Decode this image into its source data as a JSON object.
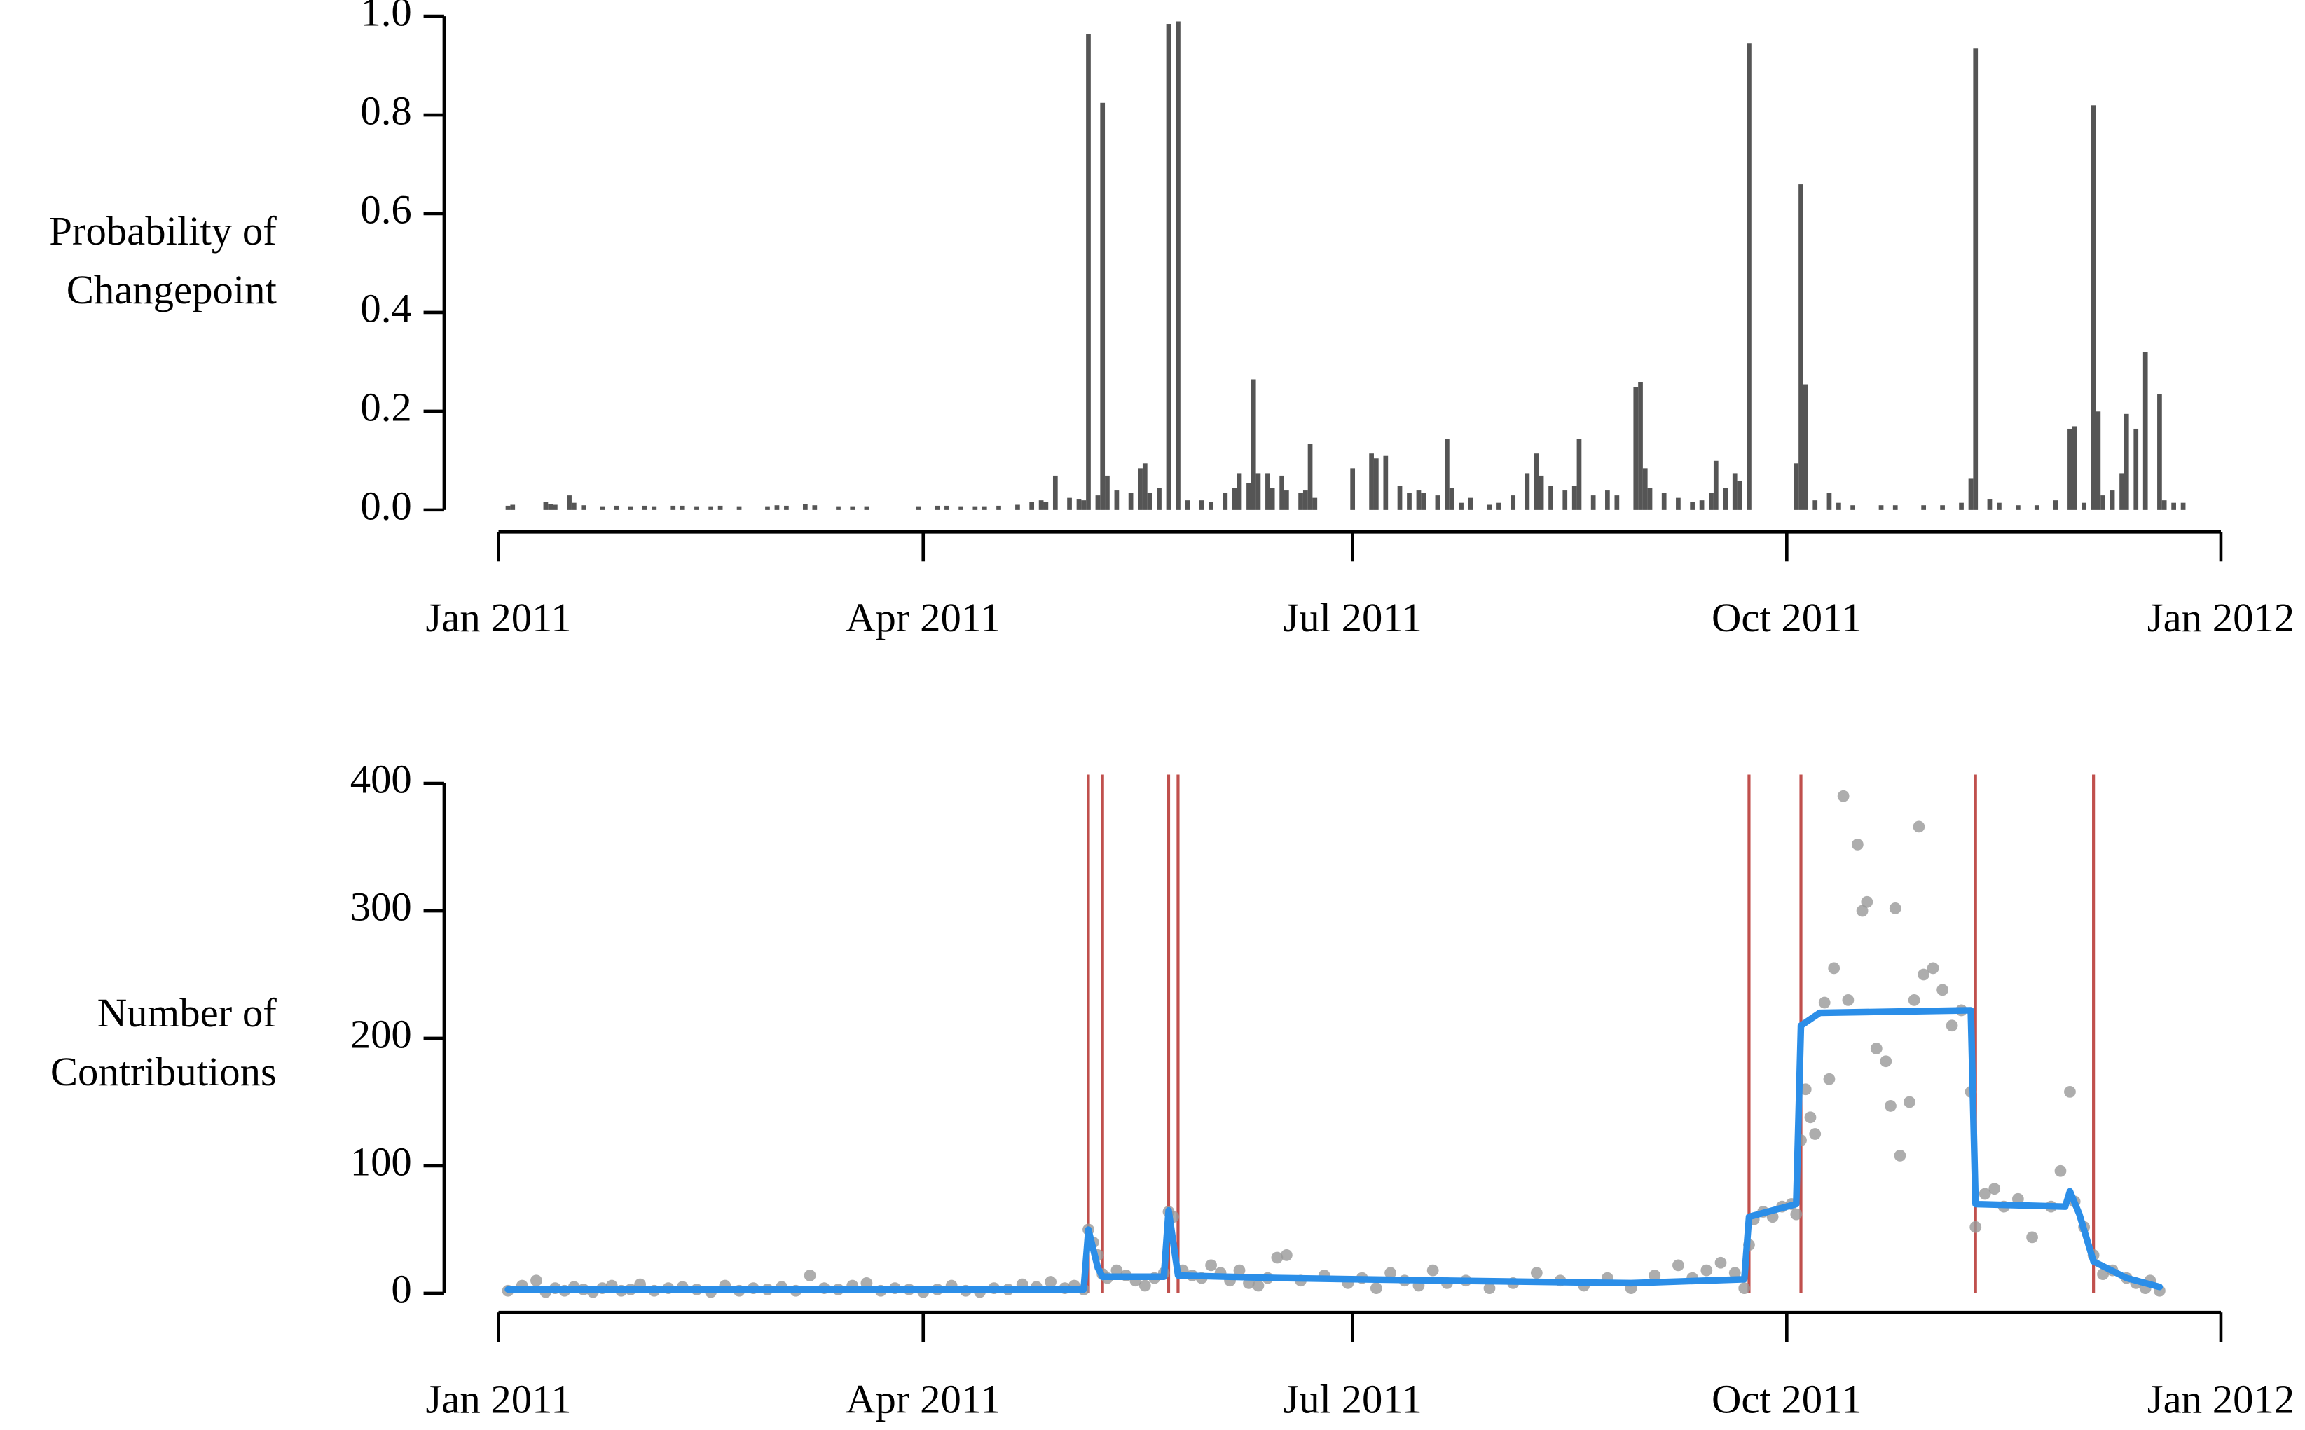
{
  "chart_data": [
    {
      "type": "bar",
      "ylabel": [
        "Probability of",
        "Changepoint"
      ],
      "color": "#555555",
      "xlim": [
        0,
        365
      ],
      "xticks": [
        {
          "value": 0,
          "label": "Jan 2011"
        },
        {
          "value": 90,
          "label": "Apr 2011"
        },
        {
          "value": 181,
          "label": "Jul 2011"
        },
        {
          "value": 273,
          "label": "Oct 2011"
        },
        {
          "value": 365,
          "label": "Jan 2012"
        }
      ],
      "ylim": [
        0,
        1
      ],
      "yticks": [
        {
          "value": 0,
          "label": "0.0"
        },
        {
          "value": 0.2,
          "label": "0.2"
        },
        {
          "value": 0.4,
          "label": "0.4"
        },
        {
          "value": 0.6,
          "label": "0.6"
        },
        {
          "value": 0.8,
          "label": "0.8"
        },
        {
          "value": 1,
          "label": "1.0"
        }
      ],
      "x": [
        2,
        3,
        10,
        11,
        12,
        15,
        16,
        18,
        22,
        25,
        28,
        31,
        33,
        37,
        39,
        42,
        45,
        47,
        51,
        57,
        59,
        61,
        65,
        67,
        72,
        75,
        78,
        89,
        93,
        95,
        98,
        101,
        103,
        106,
        110,
        113,
        115,
        116,
        118,
        121,
        123,
        124,
        125,
        127,
        128,
        129,
        131,
        134,
        136,
        137,
        138,
        140,
        142,
        144,
        146,
        149,
        151,
        154,
        156,
        157,
        159,
        160,
        161,
        163,
        164,
        166,
        167,
        170,
        171,
        172,
        173,
        181,
        185,
        186,
        188,
        191,
        193,
        195,
        196,
        199,
        201,
        202,
        204,
        206,
        210,
        212,
        215,
        218,
        220,
        221,
        223,
        226,
        228,
        229,
        232,
        235,
        237,
        241,
        242,
        243,
        244,
        247,
        250,
        253,
        255,
        257,
        258,
        260,
        262,
        263,
        265,
        275,
        276,
        277,
        279,
        282,
        284,
        287,
        293,
        296,
        302,
        306,
        310,
        312,
        313,
        316,
        318,
        322,
        326,
        330,
        333,
        334,
        336,
        338,
        339,
        340,
        342,
        344,
        345,
        347,
        349,
        352,
        353,
        355,
        357
      ],
      "values": [
        0.004,
        0.006,
        0.012,
        0.008,
        0.006,
        0.025,
        0.01,
        0.005,
        0.003,
        0.004,
        0.003,
        0.004,
        0.003,
        0.004,
        0.004,
        0.003,
        0.003,
        0.004,
        0.003,
        0.003,
        0.005,
        0.004,
        0.008,
        0.005,
        0.003,
        0.003,
        0.003,
        0.003,
        0.004,
        0.004,
        0.003,
        0.003,
        0.003,
        0.004,
        0.006,
        0.012,
        0.015,
        0.012,
        0.065,
        0.02,
        0.018,
        0.015,
        0.96,
        0.025,
        0.82,
        0.065,
        0.035,
        0.03,
        0.08,
        0.09,
        0.03,
        0.04,
        0.98,
        0.985,
        0.015,
        0.015,
        0.012,
        0.03,
        0.04,
        0.07,
        0.05,
        0.26,
        0.07,
        0.07,
        0.04,
        0.065,
        0.035,
        0.03,
        0.035,
        0.13,
        0.02,
        0.08,
        0.11,
        0.1,
        0.105,
        0.045,
        0.03,
        0.035,
        0.03,
        0.025,
        0.14,
        0.04,
        0.01,
        0.02,
        0.006,
        0.01,
        0.025,
        0.07,
        0.11,
        0.065,
        0.045,
        0.035,
        0.045,
        0.14,
        0.025,
        0.035,
        0.025,
        0.245,
        0.255,
        0.08,
        0.04,
        0.03,
        0.02,
        0.012,
        0.015,
        0.03,
        0.095,
        0.04,
        0.07,
        0.055,
        0.94,
        0.09,
        0.655,
        0.25,
        0.015,
        0.03,
        0.01,
        0.005,
        0.005,
        0.005,
        0.005,
        0.005,
        0.01,
        0.06,
        0.93,
        0.018,
        0.01,
        0.005,
        0.005,
        0.015,
        0.16,
        0.165,
        0.01,
        0.815,
        0.195,
        0.025,
        0.035,
        0.07,
        0.19,
        0.16,
        0.315,
        0.23,
        0.015,
        0.01,
        0.01
      ]
    },
    {
      "type": "scatter",
      "ylabel": [
        "Number of",
        "Contributions"
      ],
      "xlim": [
        0,
        365
      ],
      "xticks": [
        {
          "value": 0,
          "label": "Jan 2011"
        },
        {
          "value": 90,
          "label": "Apr 2011"
        },
        {
          "value": 181,
          "label": "Jul 2011"
        },
        {
          "value": 273,
          "label": "Oct 2011"
        },
        {
          "value": 365,
          "label": "Jan 2012"
        }
      ],
      "ylim": [
        0,
        400
      ],
      "yticks": [
        0,
        100,
        200,
        300,
        400
      ],
      "points": {
        "color": "#999999",
        "x": [
          2,
          5,
          8,
          10,
          12,
          14,
          16,
          18,
          20,
          22,
          24,
          26,
          28,
          30,
          33,
          36,
          39,
          42,
          45,
          48,
          51,
          54,
          57,
          60,
          63,
          66,
          69,
          72,
          75,
          78,
          81,
          84,
          87,
          90,
          93,
          96,
          99,
          102,
          105,
          108,
          111,
          114,
          117,
          120,
          122,
          124,
          125,
          126,
          127,
          128,
          129,
          131,
          133,
          135,
          137,
          139,
          141,
          142,
          143,
          145,
          147,
          149,
          151,
          153,
          155,
          157,
          159,
          161,
          163,
          165,
          167,
          170,
          175,
          180,
          183,
          186,
          189,
          192,
          195,
          198,
          201,
          205,
          210,
          215,
          220,
          225,
          230,
          235,
          240,
          245,
          250,
          253,
          256,
          259,
          262,
          264,
          265,
          266,
          268,
          270,
          272,
          274,
          275,
          276,
          277,
          278,
          279,
          281,
          282,
          283,
          285,
          286,
          288,
          289,
          290,
          292,
          294,
          295,
          296,
          297,
          299,
          300,
          301,
          302,
          304,
          306,
          308,
          310,
          312,
          313,
          315,
          317,
          319,
          322,
          325,
          329,
          331,
          333,
          334,
          336,
          338,
          340,
          342,
          345,
          347,
          349,
          350,
          352
        ],
        "values": [
          2,
          6,
          10,
          1,
          4,
          2,
          5,
          3,
          1,
          4,
          6,
          2,
          3,
          7,
          2,
          4,
          5,
          3,
          1,
          6,
          2,
          4,
          3,
          5,
          2,
          14,
          4,
          3,
          6,
          8,
          2,
          4,
          3,
          1,
          3,
          6,
          2,
          1,
          4,
          3,
          7,
          5,
          9,
          4,
          6,
          3,
          50,
          40,
          30,
          15,
          12,
          18,
          14,
          10,
          6,
          12,
          16,
          64,
          60,
          18,
          14,
          12,
          22,
          16,
          10,
          18,
          8,
          6,
          12,
          28,
          30,
          10,
          14,
          8,
          12,
          4,
          16,
          10,
          6,
          18,
          8,
          10,
          4,
          8,
          16,
          10,
          6,
          12,
          4,
          14,
          22,
          12,
          18,
          24,
          16,
          4,
          38,
          58,
          64,
          60,
          68,
          70,
          62,
          120,
          160,
          138,
          125,
          228,
          168,
          255,
          390,
          230,
          352,
          300,
          307,
          192,
          182,
          147,
          302,
          108,
          150,
          230,
          366,
          250,
          255,
          238,
          210,
          222,
          158,
          52,
          78,
          82,
          68,
          74,
          44,
          68,
          96,
          158,
          72,
          52,
          30,
          15,
          18,
          12,
          8,
          4,
          10,
          2
        ]
      },
      "fit": {
        "color": "#2b8ee8",
        "x": [
          2,
          124,
          125,
          127,
          128,
          141,
          142,
          144,
          165,
          200,
          240,
          264,
          265,
          275,
          276,
          280,
          312,
          313,
          332,
          333,
          335,
          338,
          345,
          352
        ],
        "values": [
          3,
          3,
          50,
          20,
          13,
          13,
          65,
          14,
          12,
          10,
          8,
          11,
          60,
          70,
          210,
          220,
          222,
          70,
          68,
          80,
          62,
          25,
          12,
          5
        ]
      },
      "changepoints": {
        "color": "#c0504d",
        "x": [
          125,
          128,
          142,
          144,
          265,
          276,
          313,
          338
        ]
      }
    }
  ]
}
